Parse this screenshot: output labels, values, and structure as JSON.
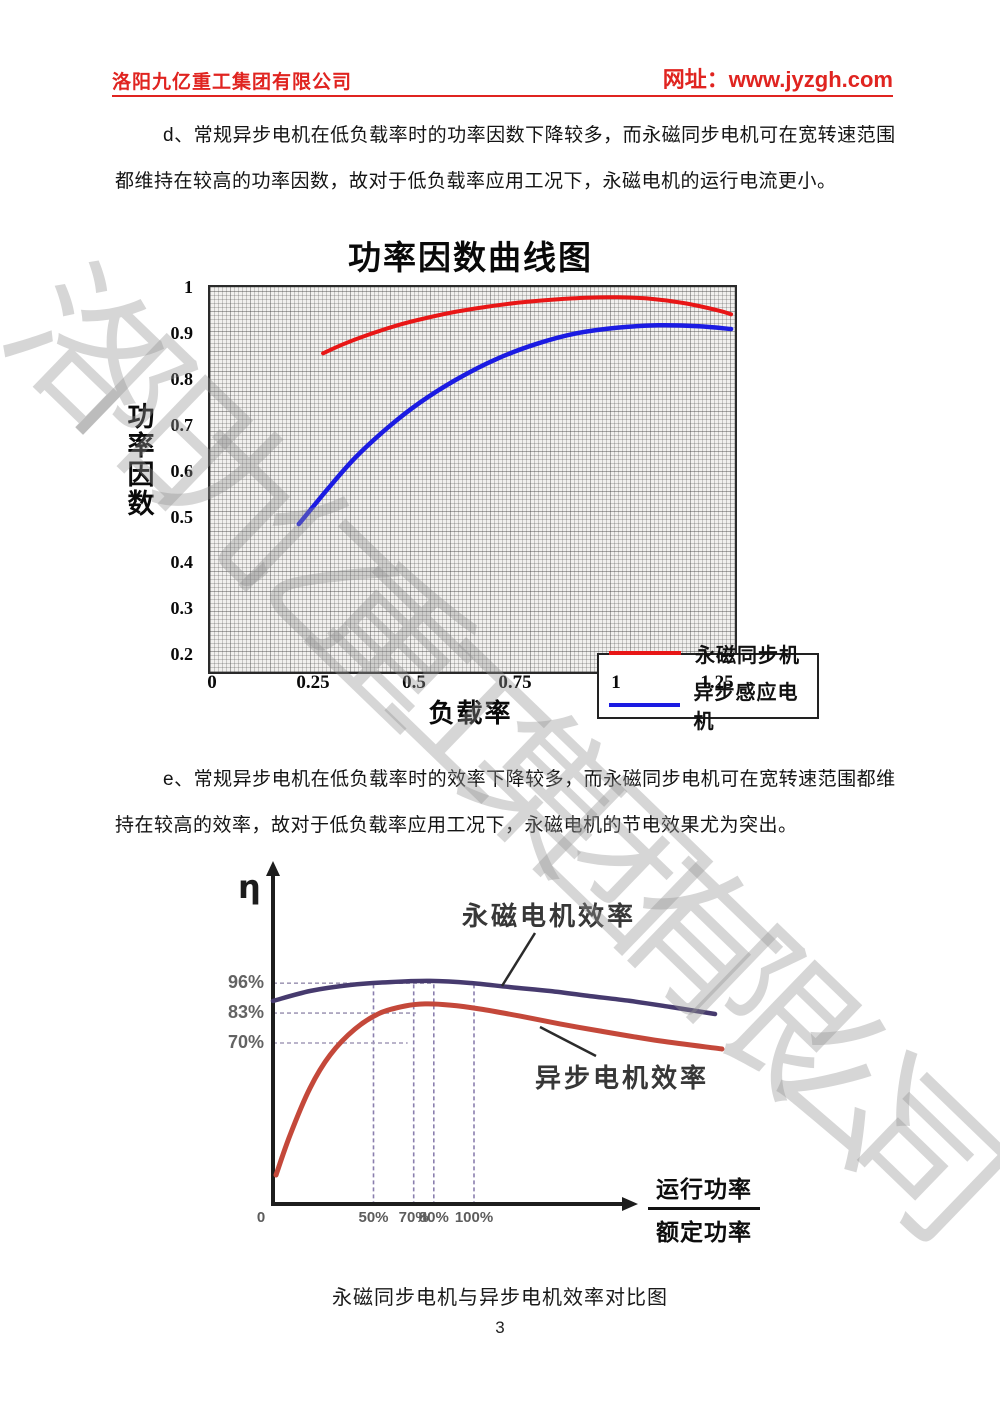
{
  "header": {
    "company": "洛阳九亿重工集团有限公司",
    "site": "网址：www.jyzgh.com",
    "accent_color": "#e02420"
  },
  "watermark": {
    "text": "洛阳九亿重工集团有限公司",
    "color": "#cfcfcf"
  },
  "paragraphs": {
    "d": "d、常规异步电机在低负载率时的功率因数下降较多，而永磁同步电机可在宽转速范围都维持在较高的功率因数，故对于低负载率应用工况下，永磁电机的运行电流更小。",
    "e": "e、常规异步电机在低负载率时的效率下降较多，而永磁同步电机可在宽转速范围都维持在较高的效率，故对于低负载率应用工况下，永磁电机的节电效果尤为突出。"
  },
  "caption": "永磁同步电机与异步电机效率对比图",
  "page_number": "3",
  "chart_data": [
    {
      "type": "line",
      "title": "功率因数曲线图",
      "ylabel": "功率因数",
      "xlabel": "负载率",
      "xlim": [
        0,
        1.3
      ],
      "ylim": [
        0.2,
        1.0
      ],
      "x_ticks": [
        0,
        0.25,
        0.5,
        0.75,
        1,
        1.25
      ],
      "y_ticks": [
        1,
        0.9,
        0.8,
        0.7,
        0.6,
        0.5,
        0.4,
        0.3,
        0.2
      ],
      "grid": "fine-mesh",
      "legend_position": "bottom-right",
      "series": [
        {
          "name": "永磁同步机",
          "color": "#e81616",
          "points": [
            [
              0.27,
              0.862
            ],
            [
              0.32,
              0.882
            ],
            [
              0.38,
              0.902
            ],
            [
              0.45,
              0.922
            ],
            [
              0.52,
              0.938
            ],
            [
              0.6,
              0.953
            ],
            [
              0.68,
              0.964
            ],
            [
              0.76,
              0.973
            ],
            [
              0.84,
              0.979
            ],
            [
              0.92,
              0.983
            ],
            [
              1.0,
              0.984
            ],
            [
              1.08,
              0.981
            ],
            [
              1.16,
              0.972
            ],
            [
              1.25,
              0.955
            ],
            [
              1.28,
              0.947
            ]
          ]
        },
        {
          "name": "异步感应电机",
          "color": "#1b1be2",
          "points": [
            [
              0.21,
              0.49
            ],
            [
              0.28,
              0.565
            ],
            [
              0.35,
              0.635
            ],
            [
              0.43,
              0.7
            ],
            [
              0.51,
              0.755
            ],
            [
              0.6,
              0.805
            ],
            [
              0.7,
              0.85
            ],
            [
              0.8,
              0.883
            ],
            [
              0.9,
              0.906
            ],
            [
              1.0,
              0.918
            ],
            [
              1.1,
              0.923
            ],
            [
              1.2,
              0.921
            ],
            [
              1.28,
              0.915
            ]
          ]
        }
      ]
    },
    {
      "type": "line",
      "title": "",
      "ylabel": "η",
      "xlabel_fraction": {
        "numerator": "运行功率",
        "denominator": "额定功率"
      },
      "x_axis_unit": "percent of rated power",
      "x_tick_labels": [
        "0",
        "50%",
        "70%",
        "80%",
        "100%"
      ],
      "x_tick_values": [
        0,
        50,
        70,
        80,
        100
      ],
      "y_guides": [
        {
          "label": "96%",
          "eff": 96,
          "to_load": 80
        },
        {
          "label": "83%",
          "eff": 83,
          "to_load": 71
        },
        {
          "label": "70%",
          "eff": 70,
          "to_load": 67
        }
      ],
      "v_guides": [
        50,
        70,
        80,
        100
      ],
      "grid": "off",
      "series": [
        {
          "name": "永磁电机效率",
          "color": "#463a6e",
          "points": [
            [
              0,
              88.3
            ],
            [
              18.4,
              92.6
            ],
            [
              38.3,
              95.2
            ],
            [
              58.2,
              96.5
            ],
            [
              78.1,
              97.0
            ],
            [
              98.0,
              96.1
            ],
            [
              117.9,
              94.3
            ],
            [
              137.8,
              92.6
            ],
            [
              157.7,
              90.4
            ],
            [
              177.6,
              88.3
            ],
            [
              197.5,
              85.7
            ],
            [
              219.9,
              82.6
            ]
          ]
        },
        {
          "name": "异步电机效率",
          "color": "#c4483a",
          "points": [
            [
              1.5,
              12.6
            ],
            [
              8.5,
              30.0
            ],
            [
              18.4,
              50.4
            ],
            [
              28.4,
              64.8
            ],
            [
              40.8,
              76.1
            ],
            [
              53.2,
              83.0
            ],
            [
              65.7,
              86.1
            ],
            [
              75.6,
              87.0
            ],
            [
              88.1,
              86.5
            ],
            [
              103.0,
              84.8
            ],
            [
              122.9,
              81.7
            ],
            [
              142.8,
              78.3
            ],
            [
              162.7,
              75.2
            ],
            [
              192.5,
              70.9
            ],
            [
              223.4,
              67.4
            ]
          ]
        }
      ]
    }
  ]
}
